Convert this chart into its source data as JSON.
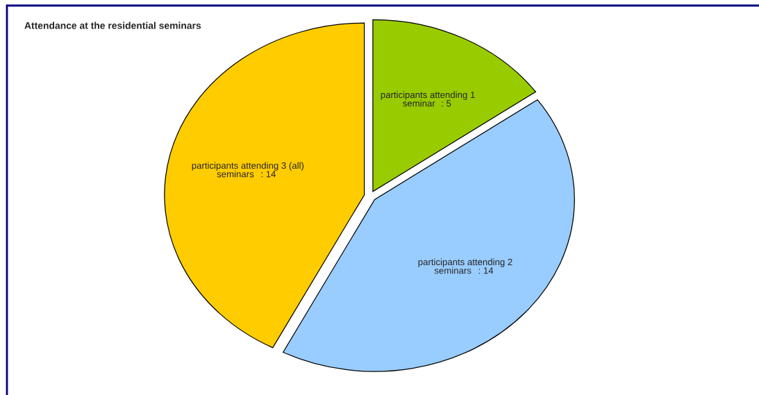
{
  "chart_data": {
    "type": "pie",
    "title": "Attendance at the residential seminars",
    "categories": [
      "participants attending 1 seminar",
      "participants attending 2 seminars",
      "participants attending 3 (all) seminars"
    ],
    "values": [
      5,
      14,
      14
    ],
    "colors": [
      "#99cc00",
      "#99ccff",
      "#ffcc00"
    ],
    "value_labels": [
      ": 5",
      ": 14",
      ": 14"
    ],
    "legend": false
  }
}
